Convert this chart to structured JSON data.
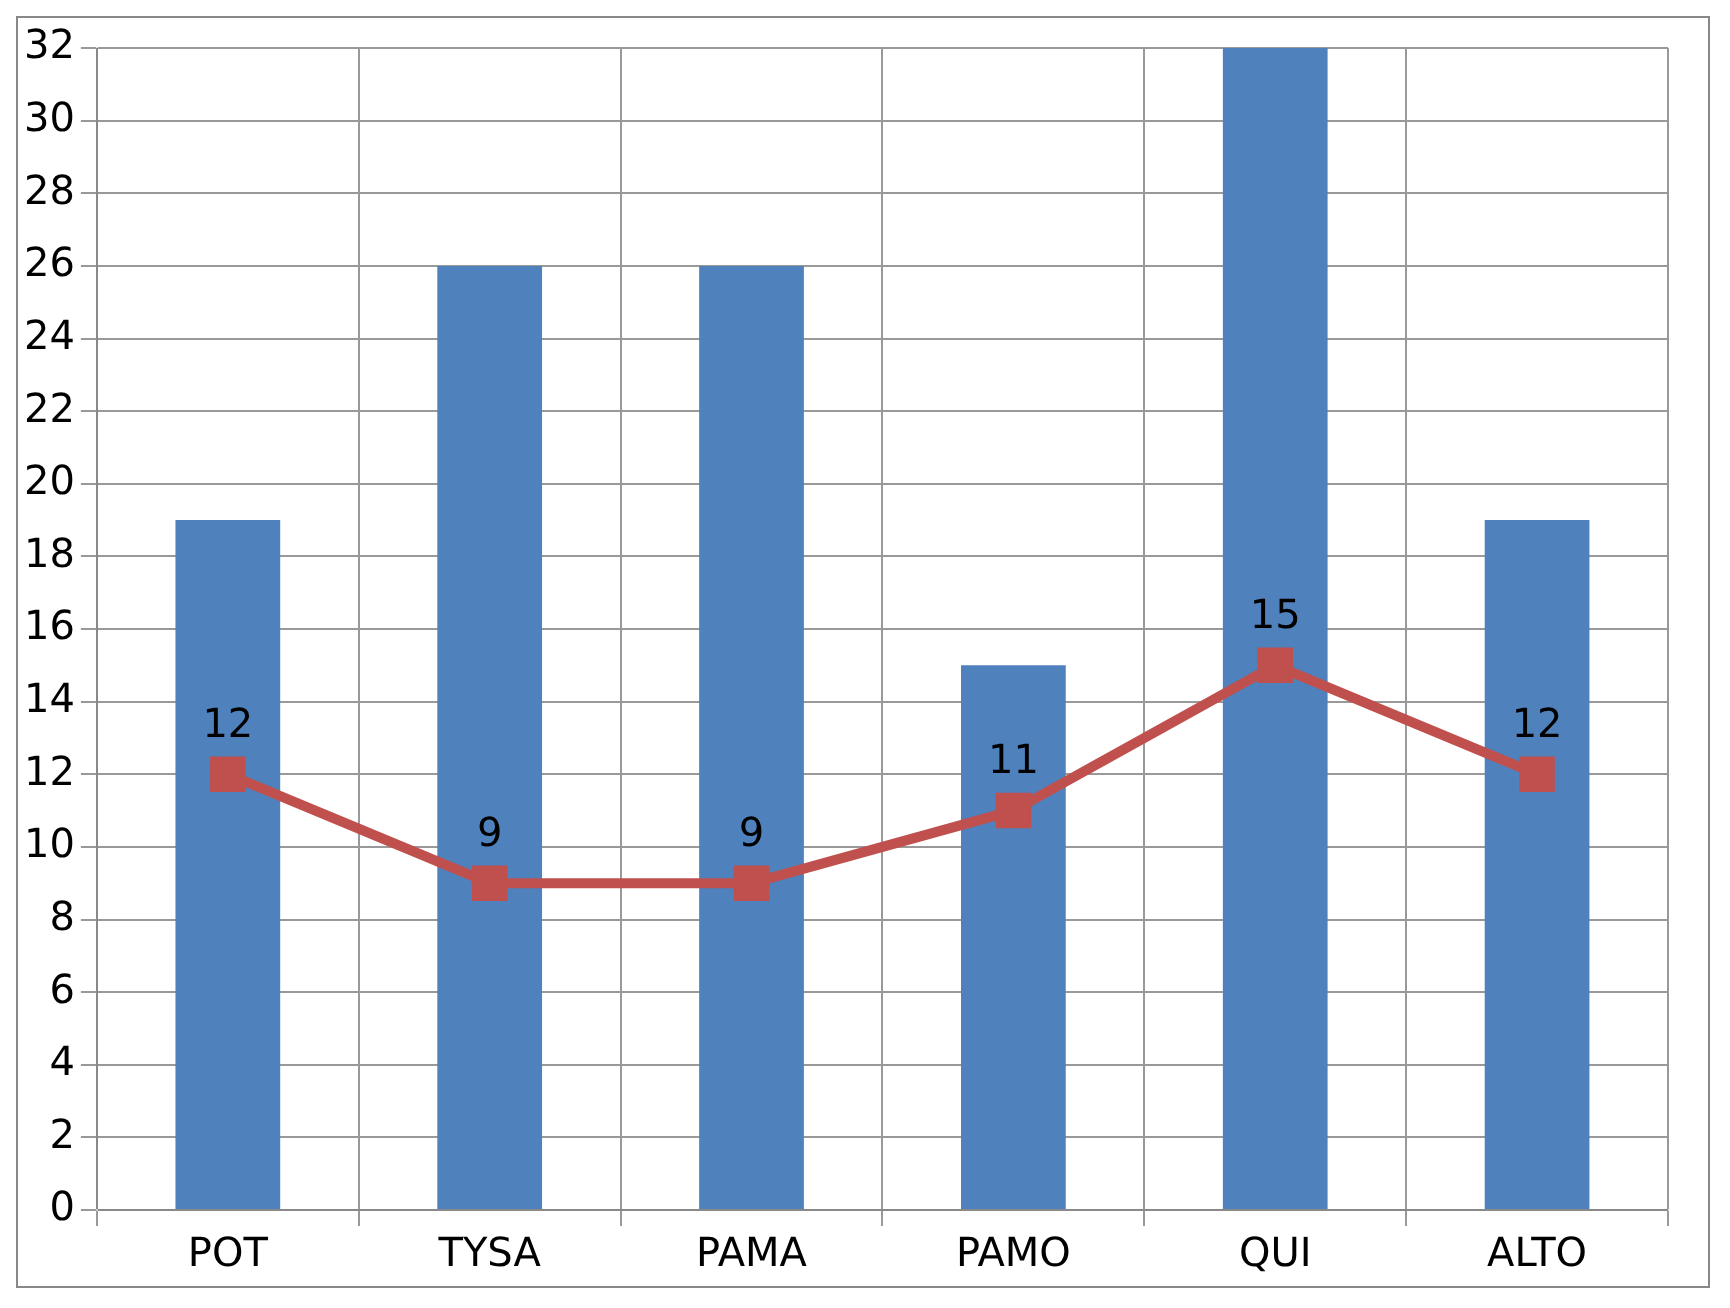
{
  "chart_data": {
    "type": "bar",
    "categories": [
      "POT",
      "TYSA",
      "PAMA",
      "PAMO",
      "QUI",
      "ALTO"
    ],
    "series": [
      {
        "color": "#4f81bd",
        "values": [
          19,
          26,
          26,
          15,
          32,
          19
        ]
      },
      {
        "type": "line",
        "color": "#c0504d",
        "values": [
          12,
          9,
          9,
          11,
          15,
          12
        ],
        "value_labels": [
          "12",
          "9",
          "9",
          "11",
          "15",
          "12"
        ],
        "marker": "square"
      }
    ],
    "ylim": [
      0,
      32
    ],
    "yticks": [
      0,
      2,
      4,
      6,
      8,
      10,
      12,
      14,
      16,
      18,
      20,
      22,
      24,
      26,
      28,
      30,
      32
    ],
    "grid": true,
    "legend": false
  }
}
